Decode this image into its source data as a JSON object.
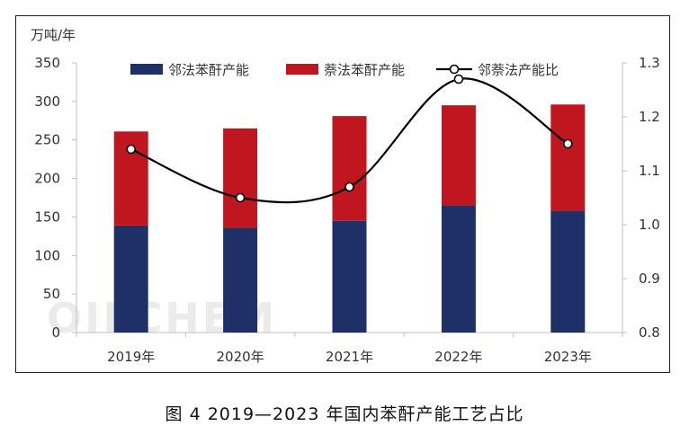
{
  "figure": {
    "caption": "图 4  2019—2023 年国内苯酐产能工艺占比",
    "unit_label": "万吨/年",
    "watermark": "OILCHEM"
  },
  "chart_data": {
    "type": "bar",
    "stacked": true,
    "categories": [
      "2019年",
      "2020年",
      "2021年",
      "2022年",
      "2023年"
    ],
    "series": [
      {
        "name": "邻法苯酐产能",
        "type": "bar",
        "axis": "left",
        "color": "#1f3069",
        "values": [
          139,
          136,
          145,
          165,
          158
        ]
      },
      {
        "name": "萘法苯酐产能",
        "type": "bar",
        "axis": "left",
        "color": "#c0161f",
        "values": [
          122,
          129,
          136,
          130,
          138
        ]
      },
      {
        "name": "邻萘法产能比",
        "type": "line",
        "axis": "right",
        "color": "#000000",
        "values": [
          1.14,
          1.05,
          1.07,
          1.27,
          1.15
        ]
      }
    ],
    "ylim_left": [
      0,
      350
    ],
    "yticks_left": [
      "0",
      "50",
      "100",
      "150",
      "200",
      "250",
      "300",
      "350"
    ],
    "ylim_right": [
      0.8,
      1.3
    ],
    "yticks_right": [
      "0.8",
      "0.9",
      "1.0",
      "1.1",
      "1.2",
      "1.3"
    ],
    "grid": false,
    "legend_position": "top"
  }
}
